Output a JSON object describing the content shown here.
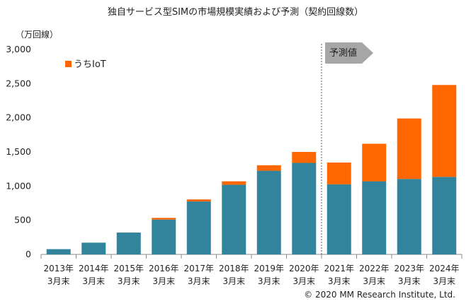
{
  "title": "独自サービス型SIMの市場規模実績および予測（契約回線数）",
  "unit": "（万回線）",
  "copyright": "© 2020 MM Research Institute, Ltd.",
  "forecast_label": "予測値",
  "colors": {
    "base": "#31849b",
    "iot": "#ff6600",
    "arrow": "#a6a6a6"
  },
  "chart_data": {
    "type": "bar",
    "stacked": true,
    "categories": [
      [
        "2013年",
        "3月末"
      ],
      [
        "2014年",
        "3月末"
      ],
      [
        "2015年",
        "3月末"
      ],
      [
        "2016年",
        "3月末"
      ],
      [
        "2017年",
        "3月末"
      ],
      [
        "2018年",
        "3月末"
      ],
      [
        "2019年",
        "3月末"
      ],
      [
        "2020年",
        "3月末"
      ],
      [
        "2021年",
        "3月末"
      ],
      [
        "2022年",
        "3月末"
      ],
      [
        "2023年",
        "3月末"
      ],
      [
        "2024年",
        "3月末"
      ]
    ],
    "series": [
      {
        "values": [
          77,
          172,
          320,
          510,
          775,
          1020,
          1225,
          1340,
          1025,
          1070,
          1105,
          1135
        ]
      },
      {
        "name": "うちIoT",
        "values": [
          0,
          0,
          0,
          25,
          30,
          50,
          80,
          160,
          320,
          550,
          885,
          1345
        ]
      }
    ],
    "yticks": [
      "3,000",
      "2,500",
      "2,000",
      "1,500",
      "1,000",
      "500",
      "0"
    ],
    "ylim": [
      0,
      3000
    ],
    "legend": "top-left",
    "forecast_start_index": 8
  }
}
